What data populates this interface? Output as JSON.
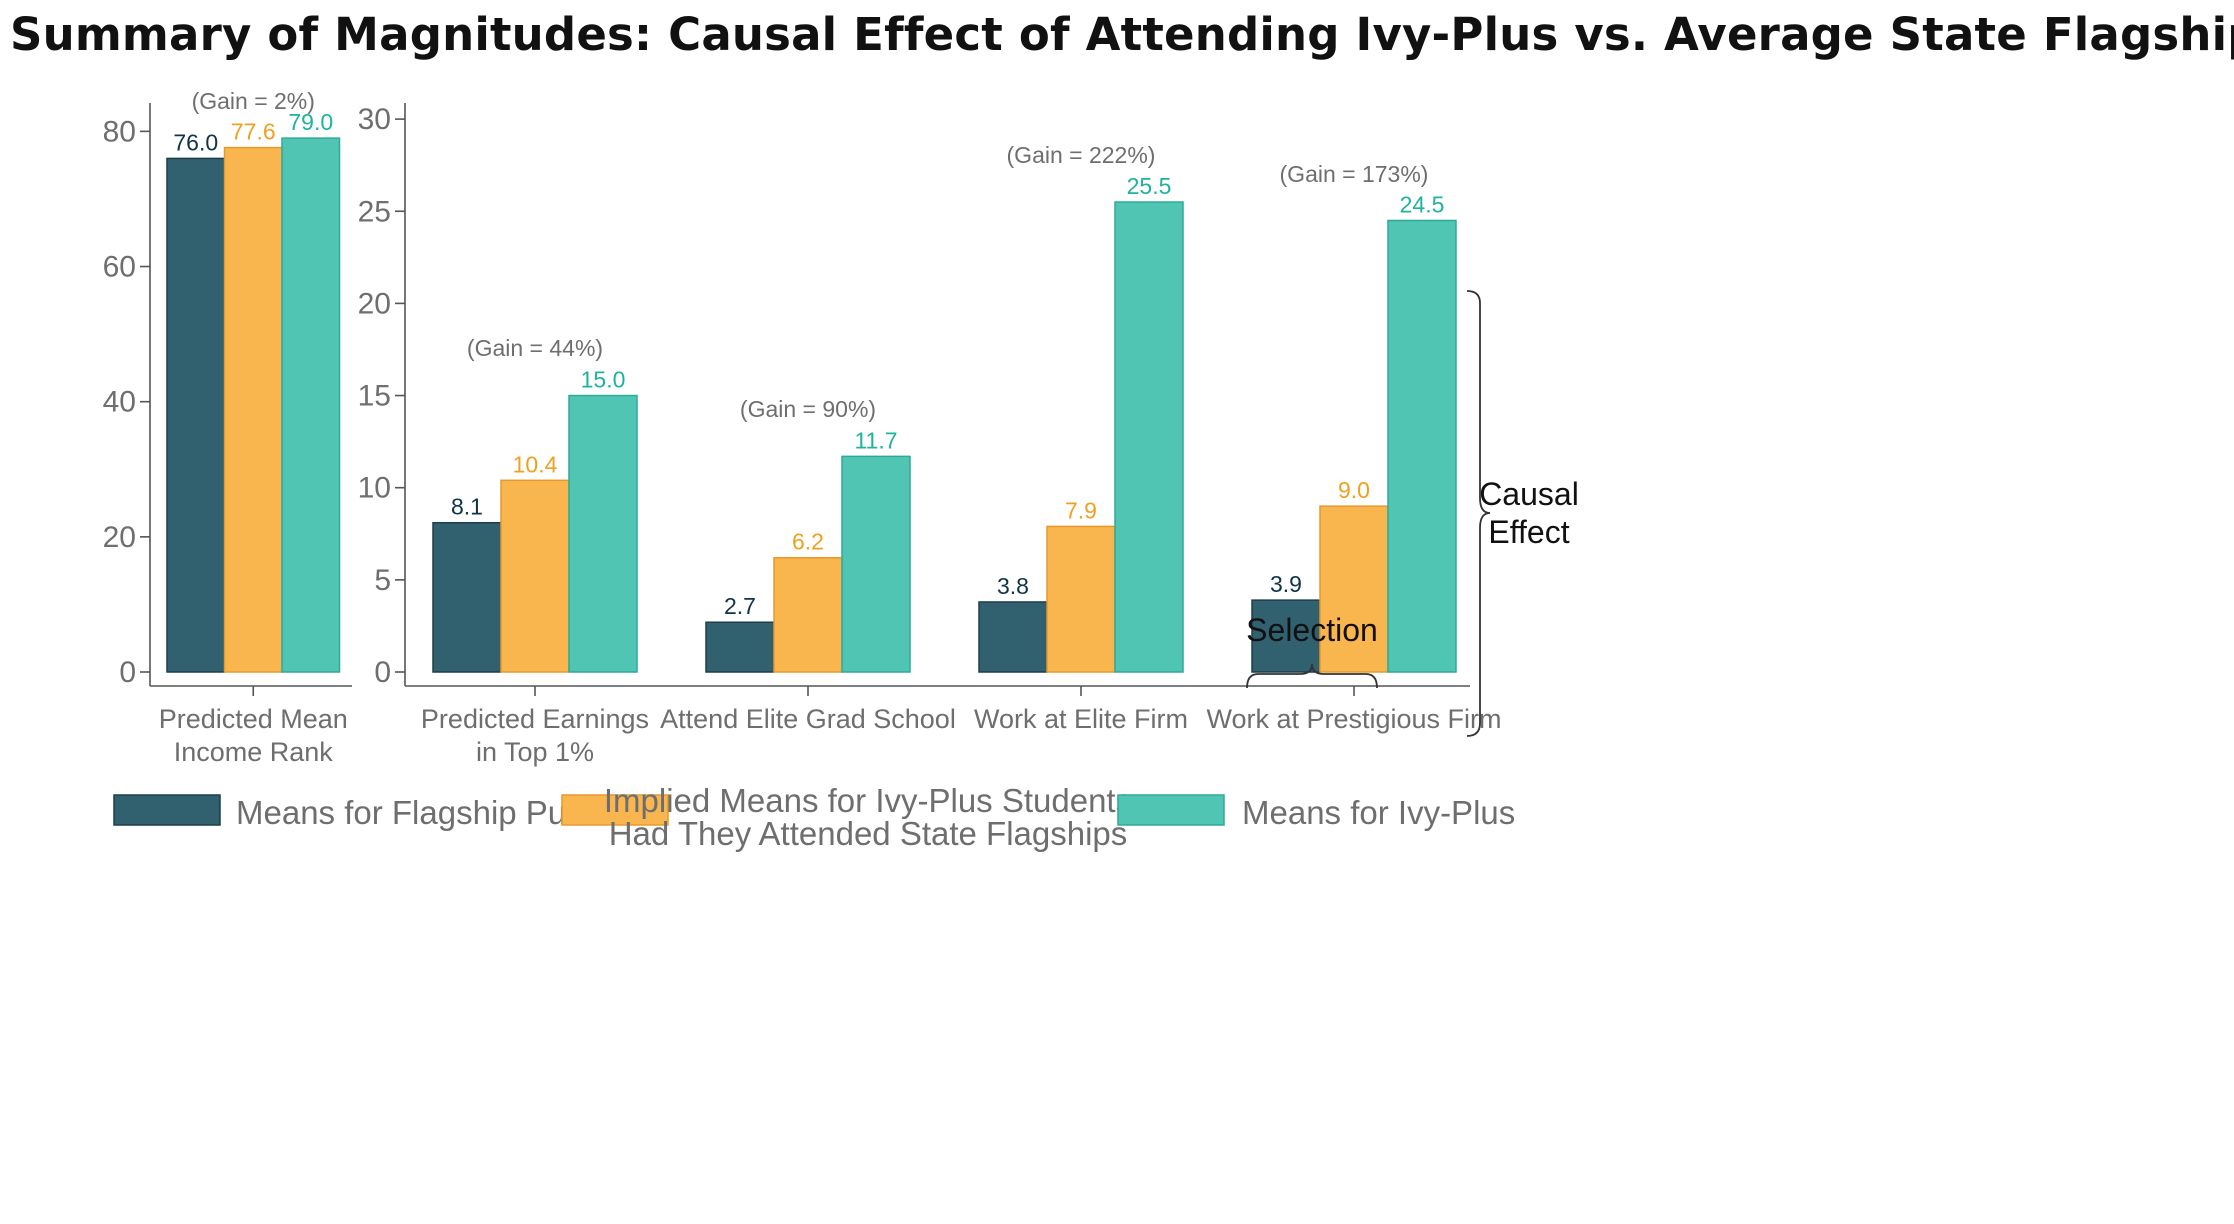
{
  "title": "Summary of Magnitudes: Causal Effect of Attending Ivy-Plus vs. Average State Flagship",
  "colors": {
    "flagship": "#31606f",
    "implied": "#f9b54e",
    "ivy": "#50c5b4",
    "flagship_label": "#0f3349",
    "implied_label": "#f0a020",
    "ivy_label": "#1fb39e"
  },
  "chart_data": [
    {
      "type": "bar",
      "categories": [
        [
          "Predicted Mean",
          "Income Rank"
        ]
      ],
      "series": [
        {
          "name": "Means for Flagship Public",
          "values": [
            76.0
          ]
        },
        {
          "name": "Implied Means for Ivy-Plus Students Had They Attended State Flagships",
          "values": [
            77.6
          ]
        },
        {
          "name": "Means for Ivy-Plus",
          "values": [
            79.0
          ]
        }
      ],
      "data_labels": [
        [
          "76.0",
          "77.6",
          "79.0"
        ]
      ],
      "gain_labels": [
        "(Gain = 2%)"
      ],
      "yticks": [
        "0",
        "20",
        "40",
        "60",
        "80"
      ],
      "ylim": [
        0,
        83
      ]
    },
    {
      "type": "bar",
      "categories": [
        [
          "Predicted Earnings",
          "in Top 1%"
        ],
        [
          "Attend Elite Grad School"
        ],
        [
          "Work at Elite Firm"
        ],
        [
          "Work at Prestigious Firm"
        ]
      ],
      "series": [
        {
          "name": "Means for Flagship Public",
          "values": [
            8.1,
            2.7,
            3.8,
            3.9
          ]
        },
        {
          "name": "Implied Means for Ivy-Plus Students Had They Attended State Flagships",
          "values": [
            10.4,
            6.2,
            7.9,
            9.0
          ]
        },
        {
          "name": "Means for Ivy-Plus",
          "values": [
            15.0,
            11.7,
            25.5,
            24.5
          ]
        }
      ],
      "data_labels": [
        [
          "8.1",
          "10.4",
          "15.0"
        ],
        [
          "2.7",
          "6.2",
          "11.7"
        ],
        [
          "3.8",
          "7.9",
          "25.5"
        ],
        [
          "3.9",
          "9.0",
          "24.5"
        ]
      ],
      "gain_labels": [
        "(Gain = 44%)",
        "(Gain = 90%)",
        "(Gain = 222%)",
        "(Gain = 173%)"
      ],
      "yticks": [
        "0",
        "5",
        "10",
        "15",
        "20",
        "25",
        "30"
      ],
      "ylim": [
        0,
        30.8
      ]
    }
  ],
  "annotations": {
    "selection": "Selection",
    "causal_line1": "Causal",
    "causal_line2": "Effect"
  },
  "legend": [
    {
      "lines": [
        "Means for Flagship Public"
      ]
    },
    {
      "lines": [
        "Implied Means for Ivy-Plus Students",
        "Had They Attended State Flagships"
      ]
    },
    {
      "lines": [
        "Means for Ivy-Plus"
      ]
    }
  ]
}
